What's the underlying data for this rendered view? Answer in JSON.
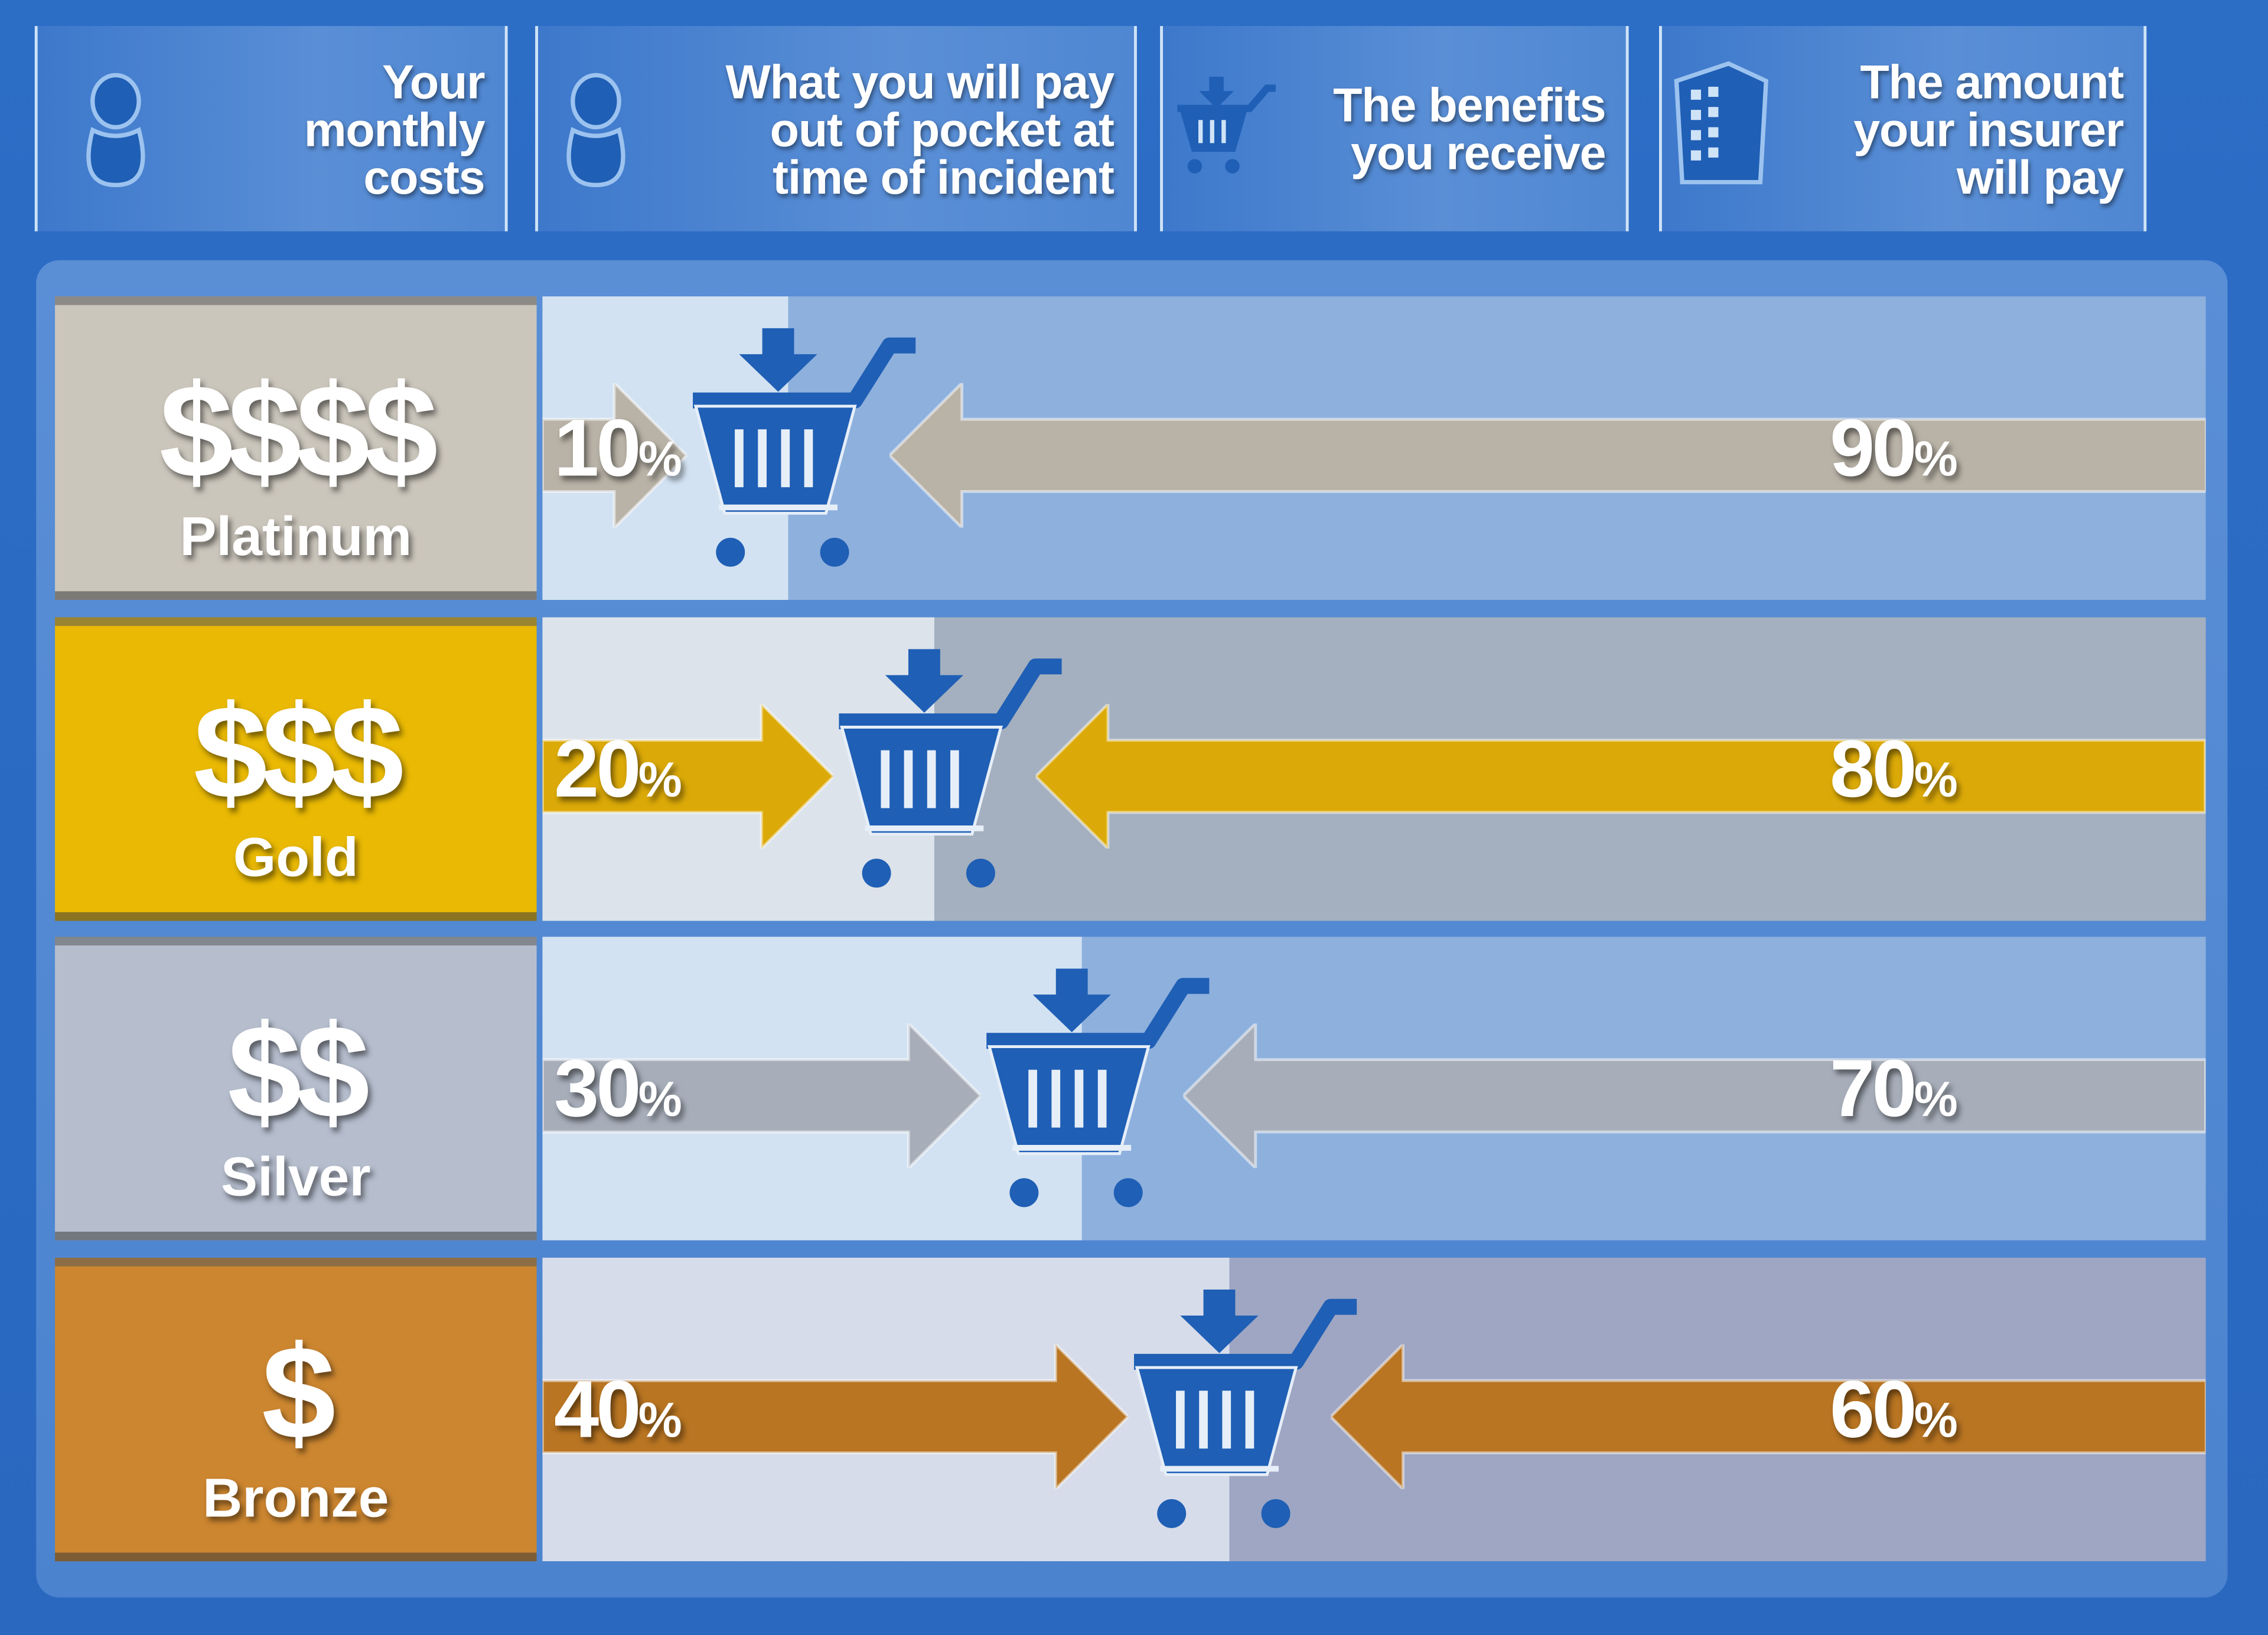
{
  "header": [
    {
      "label": "Your\nmonthly\ncosts",
      "icon": "person-icon"
    },
    {
      "label": "What you will pay\nout of pocket at\ntime of incident",
      "icon": "person-icon"
    },
    {
      "label": "The benefits\nyou receive",
      "icon": "shopping-cart-icon"
    },
    {
      "label": "The amount\nyour insurer\nwill pay",
      "icon": "building-icon"
    }
  ],
  "colors": {
    "background": "#2a6cc6",
    "icon": "#1f5fb5"
  },
  "tiers": [
    {
      "price": "$$$$",
      "name": "Platinum",
      "you_pay": 10,
      "insurer_pays": 90,
      "you_label": "10",
      "insurer_label": "90",
      "pct_sign": "%",
      "tier_color": "#cbc6bc",
      "arrow_color": "#b9b3a7",
      "light": "#d3e2f2",
      "dark": "#8eb0dd"
    },
    {
      "price": "$$$",
      "name": "Gold",
      "you_pay": 20,
      "insurer_pays": 80,
      "you_label": "20",
      "insurer_label": "80",
      "pct_sign": "%",
      "tier_color": "#e9b904",
      "arrow_color": "#dcaa08",
      "light": "#dce3eb",
      "dark": "#a4b0bf"
    },
    {
      "price": "$$",
      "name": "Silver",
      "you_pay": 30,
      "insurer_pays": 70,
      "you_label": "30",
      "insurer_label": "70",
      "pct_sign": "%",
      "tier_color": "#b6bece",
      "arrow_color": "#a7aeba",
      "light": "#d3e2f2",
      "dark": "#8eb0dd"
    },
    {
      "price": "$",
      "name": "Bronze",
      "you_pay": 40,
      "insurer_pays": 60,
      "you_label": "40",
      "insurer_label": "60",
      "pct_sign": "%",
      "tier_color": "#cc8630",
      "arrow_color": "#b97522",
      "light": "#d7dcea",
      "dark": "#9ea6c3"
    }
  ]
}
